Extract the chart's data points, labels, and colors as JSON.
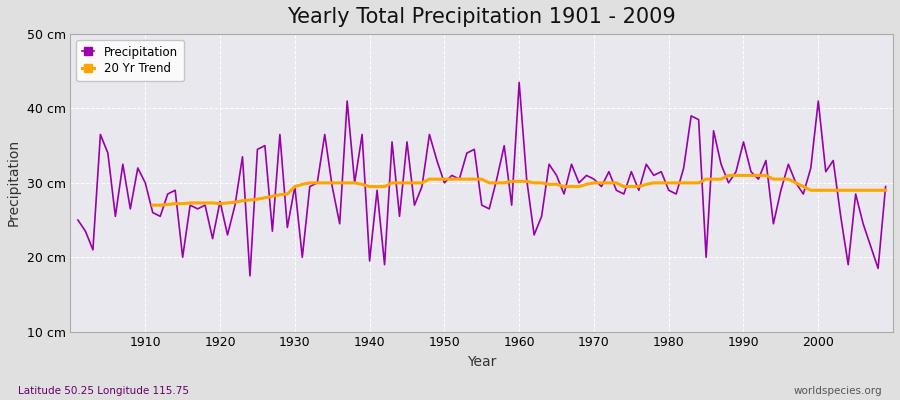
{
  "title": "Yearly Total Precipitation 1901 - 2009",
  "xlabel": "Year",
  "ylabel": "Precipitation",
  "subtitle": "Latitude 50.25 Longitude 115.75",
  "watermark": "worldspecies.org",
  "years": [
    1901,
    1902,
    1903,
    1904,
    1905,
    1906,
    1907,
    1908,
    1909,
    1910,
    1911,
    1912,
    1913,
    1914,
    1915,
    1916,
    1917,
    1918,
    1919,
    1920,
    1921,
    1922,
    1923,
    1924,
    1925,
    1926,
    1927,
    1928,
    1929,
    1930,
    1931,
    1932,
    1933,
    1934,
    1935,
    1936,
    1937,
    1938,
    1939,
    1940,
    1941,
    1942,
    1943,
    1944,
    1945,
    1946,
    1947,
    1948,
    1949,
    1950,
    1951,
    1952,
    1953,
    1954,
    1955,
    1956,
    1957,
    1958,
    1959,
    1960,
    1961,
    1962,
    1963,
    1964,
    1965,
    1966,
    1967,
    1968,
    1969,
    1970,
    1971,
    1972,
    1973,
    1974,
    1975,
    1976,
    1977,
    1978,
    1979,
    1980,
    1981,
    1982,
    1983,
    1984,
    1985,
    1986,
    1987,
    1988,
    1989,
    1990,
    1991,
    1992,
    1993,
    1994,
    1995,
    1996,
    1997,
    1998,
    1999,
    2000,
    2001,
    2002,
    2003,
    2004,
    2005,
    2006,
    2007,
    2008,
    2009
  ],
  "precipitation": [
    25.0,
    23.5,
    21.0,
    36.5,
    34.0,
    25.5,
    32.5,
    26.5,
    32.0,
    30.0,
    26.0,
    25.5,
    28.5,
    29.0,
    20.0,
    27.0,
    26.5,
    27.0,
    22.5,
    27.5,
    23.0,
    27.0,
    33.5,
    17.5,
    34.5,
    35.0,
    23.5,
    36.5,
    24.0,
    29.5,
    20.0,
    29.5,
    30.0,
    36.5,
    29.5,
    24.5,
    41.0,
    30.0,
    36.5,
    19.5,
    29.0,
    19.0,
    35.5,
    25.5,
    35.5,
    27.0,
    29.5,
    36.5,
    33.0,
    30.0,
    31.0,
    30.5,
    34.0,
    34.5,
    27.0,
    26.5,
    30.5,
    35.0,
    27.0,
    43.5,
    30.5,
    23.0,
    25.5,
    32.5,
    31.0,
    28.5,
    32.5,
    30.0,
    31.0,
    30.5,
    29.5,
    31.5,
    29.0,
    28.5,
    31.5,
    29.0,
    32.5,
    31.0,
    31.5,
    29.0,
    28.5,
    32.0,
    39.0,
    38.5,
    20.0,
    37.0,
    32.5,
    30.0,
    31.5,
    35.5,
    31.5,
    30.5,
    33.0,
    24.5,
    29.0,
    32.5,
    30.0,
    28.5,
    32.0,
    41.0,
    31.5,
    33.0,
    25.5,
    19.0,
    28.5,
    24.5,
    21.5,
    18.5,
    29.5
  ],
  "trend": [
    null,
    null,
    null,
    null,
    null,
    null,
    null,
    null,
    null,
    null,
    27.0,
    27.0,
    27.1,
    27.2,
    27.2,
    27.3,
    27.3,
    27.3,
    27.3,
    27.2,
    27.3,
    27.4,
    27.6,
    27.7,
    27.8,
    28.0,
    28.2,
    28.4,
    28.5,
    29.5,
    29.8,
    30.0,
    30.0,
    30.0,
    30.0,
    30.0,
    30.0,
    30.0,
    29.8,
    29.5,
    29.5,
    29.5,
    30.0,
    30.0,
    30.0,
    30.0,
    30.0,
    30.5,
    30.5,
    30.5,
    30.5,
    30.5,
    30.5,
    30.5,
    30.5,
    30.0,
    30.0,
    30.0,
    30.2,
    30.2,
    30.2,
    30.0,
    30.0,
    29.8,
    29.8,
    29.5,
    29.5,
    29.5,
    29.8,
    30.0,
    30.0,
    30.0,
    30.0,
    29.5,
    29.5,
    29.5,
    29.8,
    30.0,
    30.0,
    30.0,
    30.0,
    30.0,
    30.0,
    30.0,
    30.5,
    30.5,
    30.5,
    31.0,
    31.0,
    31.0,
    31.0,
    31.0,
    31.0,
    30.5,
    30.5,
    30.5,
    30.0,
    29.5,
    29.0,
    29.0,
    29.0,
    29.0,
    29.0,
    29.0,
    29.0,
    29.0,
    29.0,
    29.0,
    29.0
  ],
  "precip_color": "#9900aa",
  "trend_color": "#FFA500",
  "bg_color": "#e0e0e0",
  "plot_bg_color": "#e8e8ee",
  "grid_color": "#ffffff",
  "ylim": [
    10,
    50
  ],
  "xlim": [
    1900,
    2010
  ],
  "yticks": [
    10,
    20,
    30,
    40,
    50
  ],
  "ytick_labels": [
    "10 cm",
    "20 cm",
    "30 cm",
    "40 cm",
    "50 cm"
  ],
  "xticks": [
    1910,
    1920,
    1930,
    1940,
    1950,
    1960,
    1970,
    1980,
    1990,
    2000
  ],
  "title_fontsize": 15,
  "axis_label_fontsize": 10,
  "tick_fontsize": 9,
  "legend_marker": "s",
  "legend_marker_size": 6
}
